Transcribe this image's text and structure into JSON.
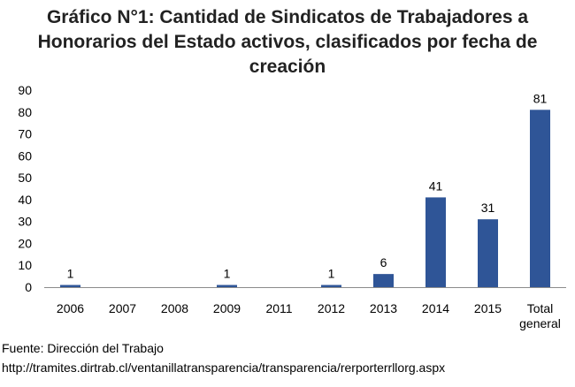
{
  "title": {
    "line1": "Gráfico N°1: Cantidad de Sindicatos de Trabajadores a",
    "line2": "Honorarios del Estado activos, clasificados por fecha de creación"
  },
  "chart_data": {
    "type": "bar",
    "title": "Gráfico N°1: Cantidad de Sindicatos de Trabajadores a Honorarios del Estado activos, clasificados por fecha de creación",
    "xlabel": "",
    "ylabel": "",
    "categories": [
      "2006",
      "2007",
      "2008",
      "2009",
      "2011",
      "2012",
      "2013",
      "2014",
      "2015",
      "Total general"
    ],
    "category_lines": [
      [
        "2006"
      ],
      [
        "2007"
      ],
      [
        "2008"
      ],
      [
        "2009"
      ],
      [
        "2011"
      ],
      [
        "2012"
      ],
      [
        "2013"
      ],
      [
        "2014"
      ],
      [
        "2015"
      ],
      [
        "Total",
        "general"
      ]
    ],
    "values": [
      1,
      0,
      0,
      1,
      0,
      1,
      6,
      41,
      31,
      81
    ],
    "data_labels": [
      "1",
      "",
      "",
      "1",
      "",
      "1",
      "6",
      "41",
      "31",
      "81"
    ],
    "ylim": [
      0,
      90
    ],
    "yticks": [
      0,
      10,
      20,
      30,
      40,
      50,
      60,
      70,
      80,
      90
    ],
    "bar_color": "#2F5597",
    "grid": false,
    "legend": "none"
  },
  "source": {
    "line1": "Fuente: Dirección del Trabajo",
    "line2": "http://tramites.dirtrab.cl/ventanillatransparencia/transparencia/rerporterrllorg.aspx"
  }
}
